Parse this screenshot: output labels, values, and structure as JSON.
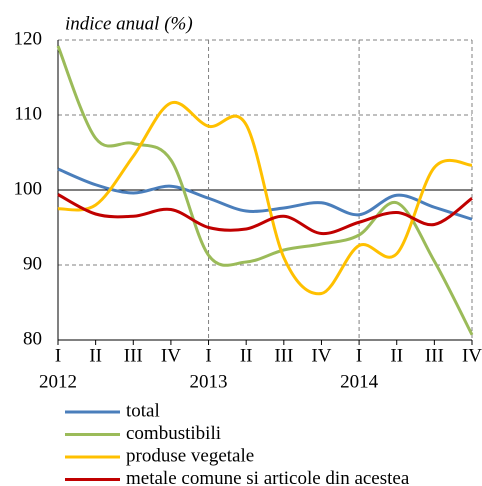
{
  "chart_data": {
    "type": "line",
    "y_label": "indice anual (%)",
    "categories": [
      "I",
      "II",
      "III",
      "IV",
      "I",
      "II",
      "III",
      "IV",
      "I",
      "II",
      "III",
      "IV"
    ],
    "year_labels": [
      "2012",
      null,
      null,
      null,
      "2013",
      null,
      null,
      null,
      "2014",
      null,
      null,
      null
    ],
    "ylim": [
      80,
      120
    ],
    "yticks": [
      80,
      90,
      100,
      110,
      120
    ],
    "baseline": 100,
    "grid": true,
    "legend": "bottom",
    "series": [
      {
        "name": "total",
        "color": "#4a7ebb",
        "values": [
          102.8,
          100.7,
          99.6,
          100.5,
          98.9,
          97.2,
          97.6,
          98.3,
          96.7,
          99.3,
          97.7,
          96.1
        ]
      },
      {
        "name": "combustibili",
        "color": "#9bbb59",
        "values": [
          119.2,
          106.9,
          106.2,
          104.0,
          91.3,
          90.4,
          92.0,
          92.8,
          94.0,
          98.3,
          90.5,
          80.7
        ]
      },
      {
        "name": "produse vegetale",
        "color": "#ffc000",
        "values": [
          97.5,
          98.0,
          104.5,
          111.6,
          108.5,
          108.7,
          91.0,
          86.2,
          92.6,
          91.5,
          103.0,
          103.3
        ]
      },
      {
        "name": "metale comune si articole din acestea",
        "color": "#c00000",
        "values": [
          99.4,
          96.8,
          96.5,
          97.4,
          95.0,
          94.8,
          96.5,
          94.2,
          95.7,
          97.0,
          95.4,
          98.9
        ]
      }
    ]
  }
}
